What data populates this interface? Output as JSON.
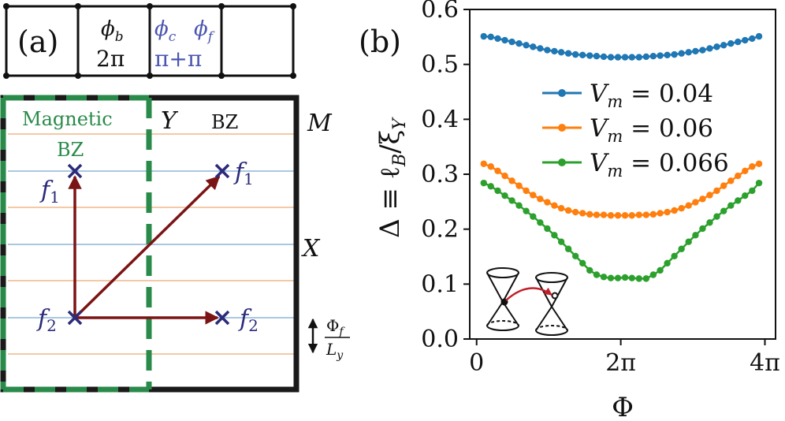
{
  "panel_a": {
    "label": "(a)",
    "strip": {
      "phi_b": "ϕ",
      "phi_b_sub": "b",
      "two_pi": "2π",
      "phi_c": "ϕ",
      "phi_c_sub": "c",
      "phi_f": "ϕ",
      "phi_f_sub": "f",
      "pi_plus_pi": "π+π"
    },
    "bz": {
      "magnetic": "Magnetic",
      "magnetic_bz": "BZ",
      "Y": "Y",
      "BZ": "BZ",
      "M": "M",
      "X": "X",
      "f": "f",
      "sub1": "1",
      "sub2": "2",
      "phi_f_num": "Φ",
      "phi_f_num_sub": "f",
      "L_y": "L",
      "L_y_sub": "y"
    },
    "colors": {
      "green": "#2a8a4a",
      "dark_red": "#7b1414",
      "navy": "#2b2b7a",
      "blue_strip": "#4a55b0",
      "line_blue": "#a9c8e0",
      "line_orange": "#f3c9a6"
    }
  },
  "chart_data": {
    "type": "scatter",
    "panel_label": "(b)",
    "ylabel_parts": [
      "Δ ≡ ℓ",
      "B",
      "/ξ",
      "Y"
    ],
    "xlabel": "Φ",
    "xticks": [
      "0",
      "2π",
      "4π"
    ],
    "x_tick_values": [
      0,
      6.2832,
      12.5664
    ],
    "yticks": [
      "0.0",
      "0.1",
      "0.2",
      "0.3",
      "0.4",
      "0.5",
      "0.6"
    ],
    "xlim": [
      -0.3,
      13.03
    ],
    "ylim": [
      0.0,
      0.6
    ],
    "legend_placement": "upper-right",
    "series": [
      {
        "name_parts": [
          "V",
          "m",
          " = 0.04"
        ],
        "color": "#1f77b4",
        "x": [
          0.31,
          0.62,
          0.92,
          1.23,
          1.54,
          1.85,
          2.16,
          2.46,
          2.77,
          3.08,
          3.39,
          3.69,
          4.0,
          4.31,
          4.62,
          4.93,
          5.23,
          5.54,
          5.85,
          6.16,
          6.47,
          6.77,
          7.08,
          7.39,
          7.7,
          8.0,
          8.31,
          8.62,
          8.93,
          9.24,
          9.54,
          9.85,
          10.16,
          10.47,
          10.77,
          11.08,
          11.39,
          11.7,
          12.01,
          12.31
        ],
        "y": [
          0.551,
          0.55,
          0.547,
          0.544,
          0.541,
          0.538,
          0.535,
          0.532,
          0.529,
          0.526,
          0.524,
          0.522,
          0.52,
          0.518,
          0.517,
          0.516,
          0.515,
          0.514,
          0.513,
          0.513,
          0.513,
          0.513,
          0.513,
          0.514,
          0.515,
          0.516,
          0.517,
          0.518,
          0.52,
          0.522,
          0.524,
          0.526,
          0.529,
          0.532,
          0.535,
          0.538,
          0.541,
          0.544,
          0.547,
          0.551
        ]
      },
      {
        "name_parts": [
          "V",
          "m",
          " = 0.06"
        ],
        "color": "#ff7f0e",
        "x": [
          0.31,
          0.62,
          0.92,
          1.23,
          1.54,
          1.85,
          2.16,
          2.46,
          2.77,
          3.08,
          3.39,
          3.69,
          4.0,
          4.31,
          4.62,
          4.93,
          5.23,
          5.54,
          5.85,
          6.16,
          6.47,
          6.77,
          7.08,
          7.39,
          7.7,
          8.0,
          8.31,
          8.62,
          8.93,
          9.24,
          9.54,
          9.85,
          10.16,
          10.47,
          10.77,
          11.08,
          11.39,
          11.7,
          12.01,
          12.31
        ],
        "y": [
          0.319,
          0.314,
          0.306,
          0.297,
          0.288,
          0.279,
          0.27,
          0.262,
          0.255,
          0.249,
          0.243,
          0.238,
          0.234,
          0.231,
          0.229,
          0.227,
          0.226,
          0.226,
          0.225,
          0.225,
          0.225,
          0.225,
          0.226,
          0.226,
          0.227,
          0.229,
          0.231,
          0.234,
          0.238,
          0.243,
          0.249,
          0.255,
          0.262,
          0.27,
          0.279,
          0.288,
          0.297,
          0.306,
          0.314,
          0.319
        ]
      },
      {
        "name_parts": [
          "V",
          "m",
          " = 0.066"
        ],
        "color": "#2ca02c",
        "x": [
          0.31,
          0.62,
          0.92,
          1.23,
          1.54,
          1.85,
          2.16,
          2.46,
          2.77,
          3.08,
          3.39,
          3.69,
          4.0,
          4.31,
          4.62,
          4.93,
          5.23,
          5.54,
          5.85,
          6.16,
          6.47,
          6.77,
          7.08,
          7.39,
          7.7,
          8.0,
          8.31,
          8.62,
          8.93,
          9.24,
          9.54,
          9.85,
          10.16,
          10.47,
          10.77,
          11.08,
          11.39,
          11.7,
          12.01,
          12.31
        ],
        "y": [
          0.284,
          0.278,
          0.27,
          0.261,
          0.252,
          0.243,
          0.233,
          0.223,
          0.212,
          0.201,
          0.189,
          0.177,
          0.164,
          0.151,
          0.138,
          0.125,
          0.117,
          0.113,
          0.111,
          0.111,
          0.112,
          0.111,
          0.11,
          0.11,
          0.117,
          0.125,
          0.138,
          0.151,
          0.164,
          0.177,
          0.189,
          0.201,
          0.212,
          0.223,
          0.233,
          0.243,
          0.252,
          0.261,
          0.27,
          0.284
        ]
      }
    ]
  }
}
